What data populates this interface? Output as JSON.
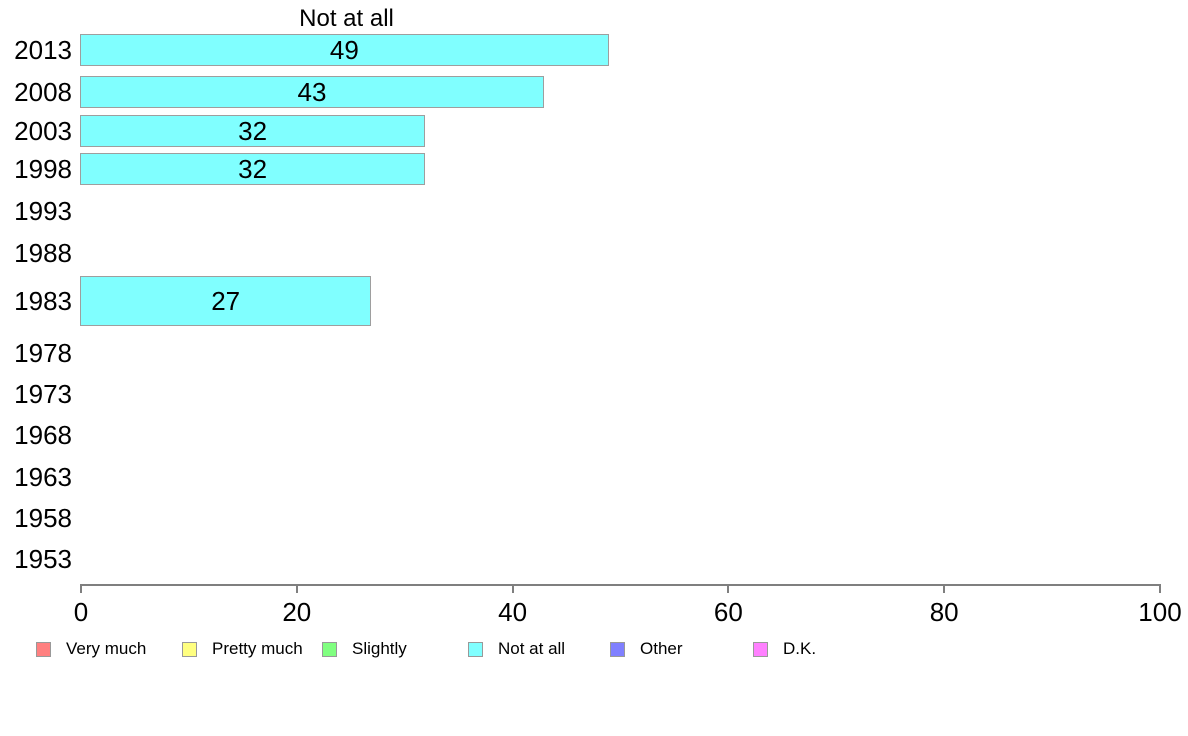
{
  "chart_data": {
    "type": "bar",
    "orientation": "horizontal",
    "title": "Not at all",
    "categories": [
      "2013",
      "2008",
      "2003",
      "1998",
      "1993",
      "1988",
      "1983",
      "1978",
      "1973",
      "1968",
      "1963",
      "1958",
      "1953"
    ],
    "values": [
      49,
      43,
      32,
      32,
      null,
      null,
      27,
      null,
      null,
      null,
      null,
      null,
      null
    ],
    "bar_labels": [
      "49",
      "43",
      "32",
      "32",
      "",
      "",
      "27",
      "",
      "",
      "",
      "",
      "",
      ""
    ],
    "xlim": [
      0,
      100
    ],
    "xticks": [
      "0",
      "20",
      "40",
      "60",
      "80",
      "100"
    ],
    "grid": false,
    "bar_fill_color": "#80FFFF",
    "bar_border_color": "#9e9e9e",
    "axis_color": "#7f7f7f",
    "legend_position": "bottom",
    "legend": [
      {
        "label": "Very much",
        "color": "#FF8080"
      },
      {
        "label": "Pretty much",
        "color": "#FFFF80"
      },
      {
        "label": "Slightly",
        "color": "#80FF80"
      },
      {
        "label": "Not at all",
        "color": "#80FFFF"
      },
      {
        "label": "Other",
        "color": "#8080FF"
      },
      {
        "label": "D.K.",
        "color": "#FF80FF"
      }
    ]
  }
}
